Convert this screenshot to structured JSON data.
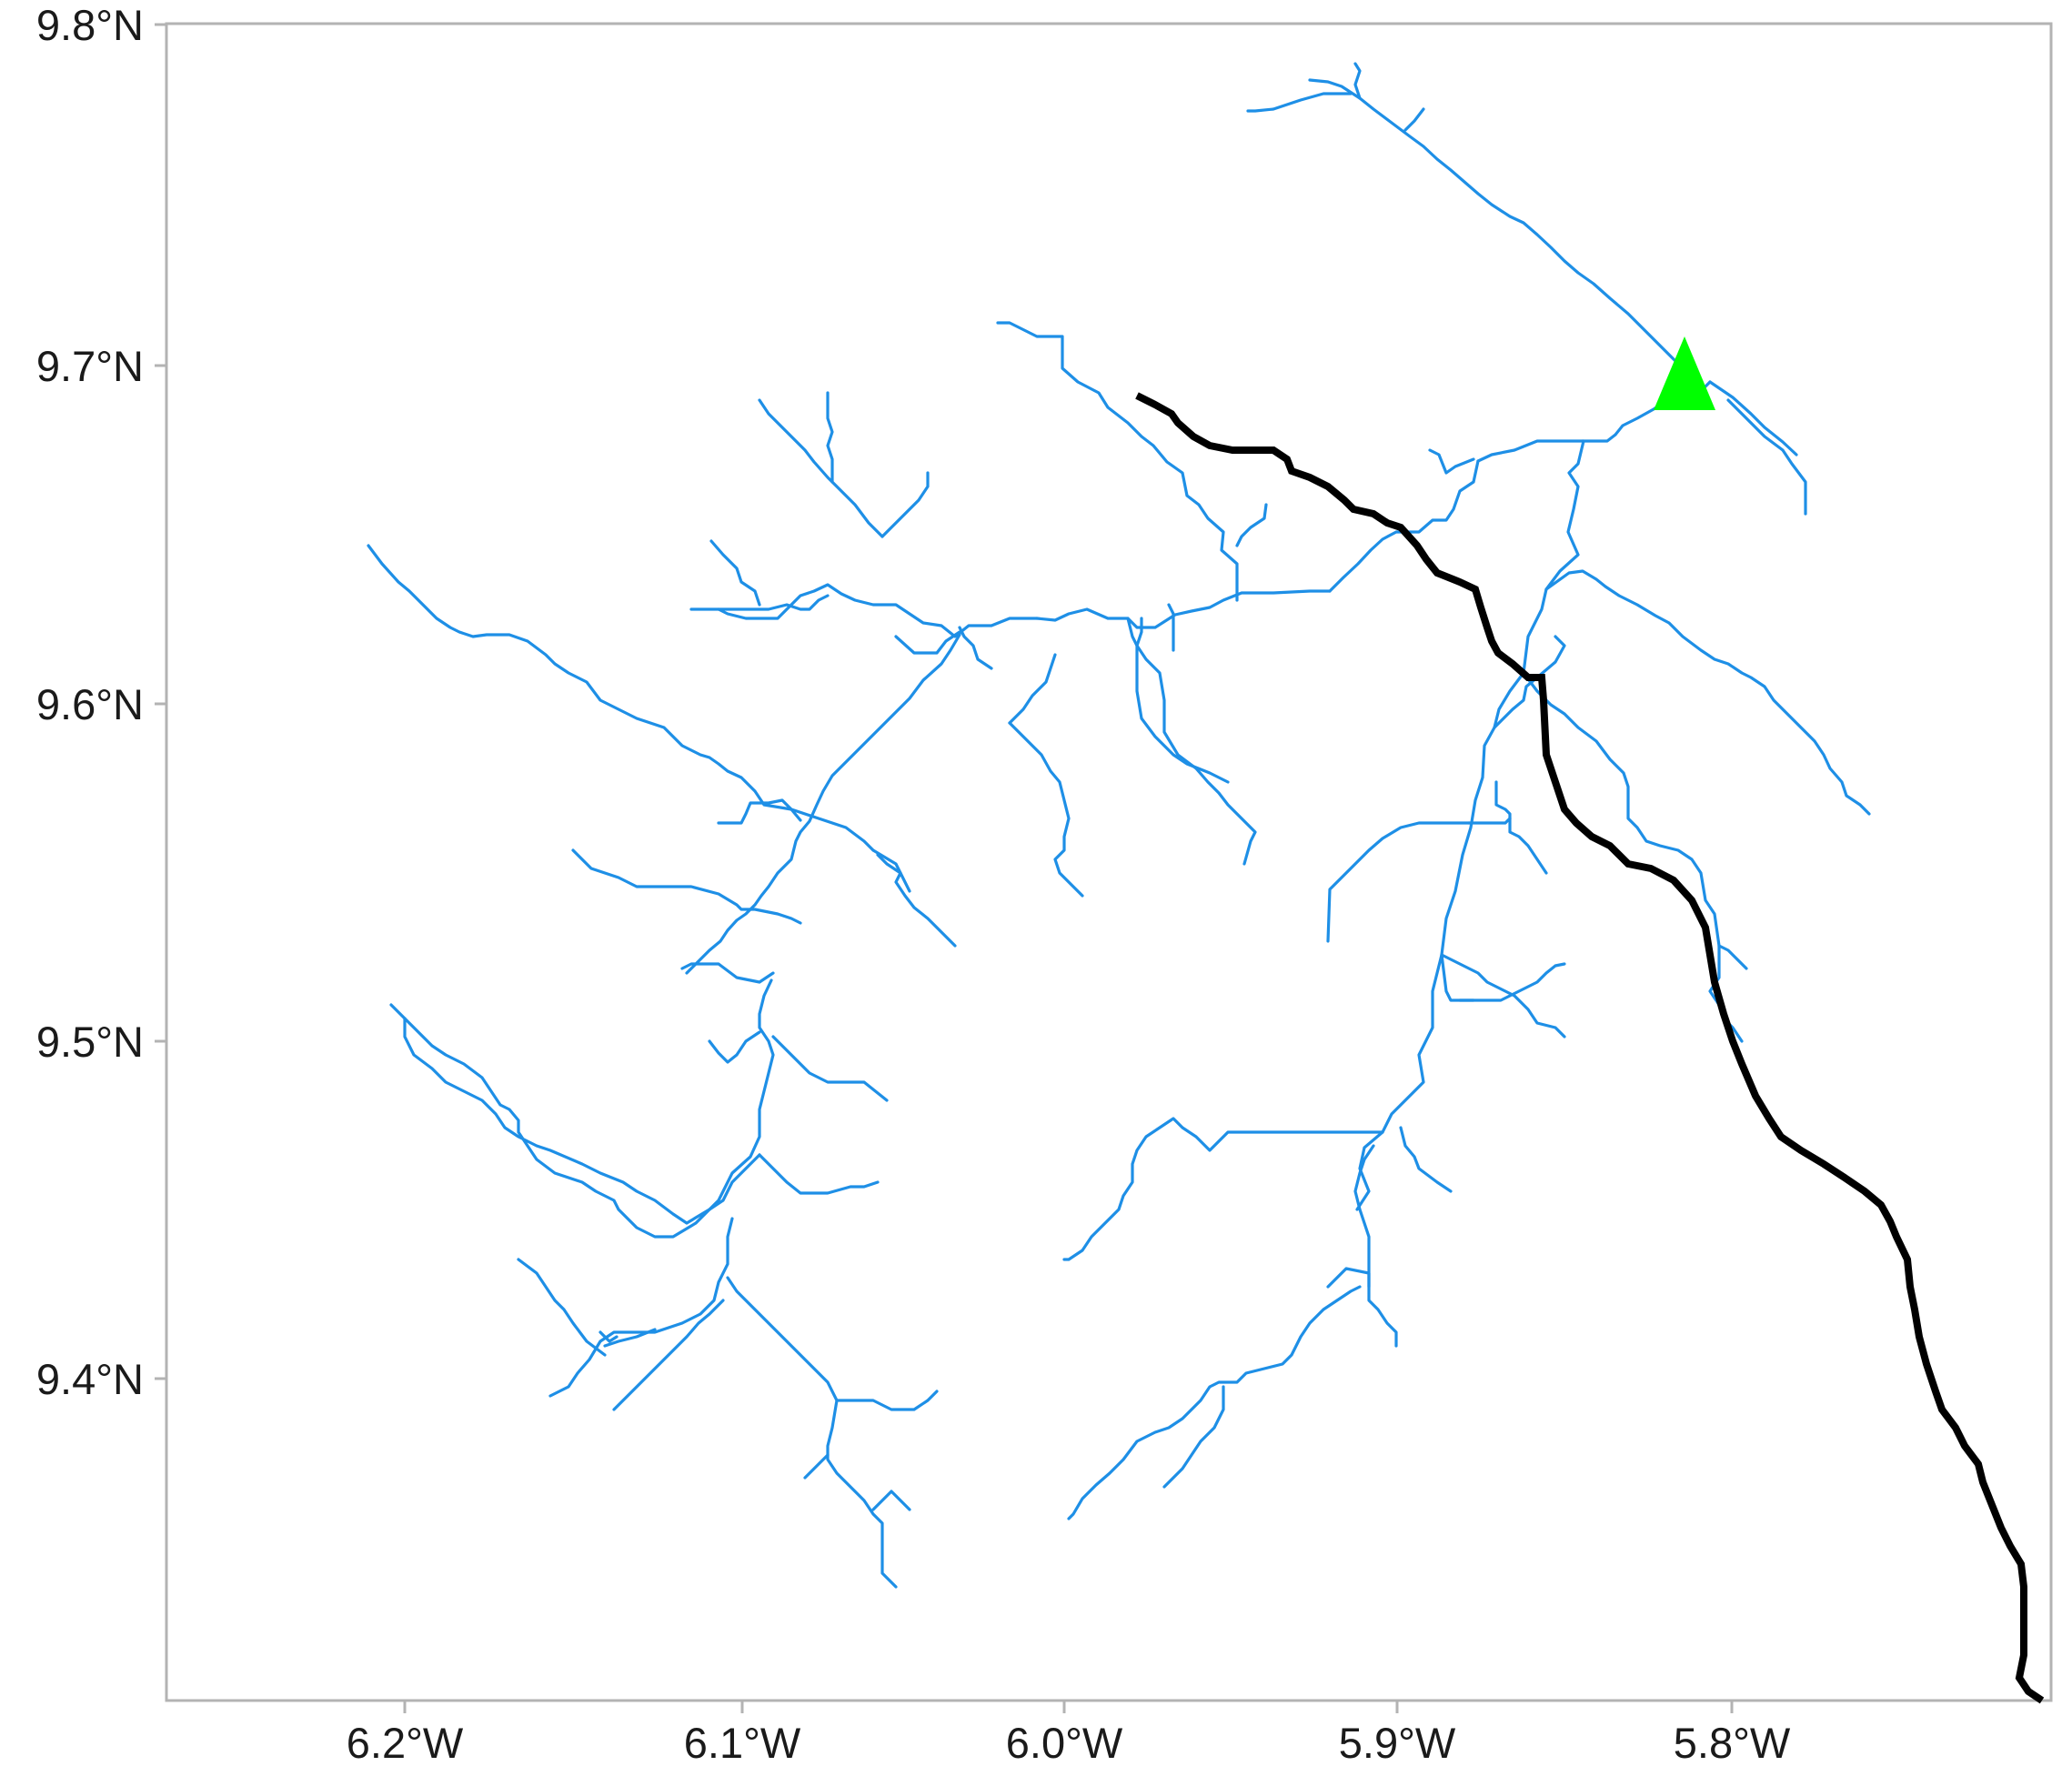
{
  "map": {
    "x_ticks": [
      "6.2°W",
      "6.1°W",
      "6.0°W",
      "5.9°W",
      "5.8°W"
    ],
    "y_ticks": [
      "9.8°N",
      "9.7°N",
      "9.6°N",
      "9.5°N",
      "9.4°N"
    ],
    "xlim": [
      -6.265,
      -5.765
    ],
    "ylim": [
      9.31,
      9.807
    ],
    "colors": {
      "boundary": "#000000",
      "river": "#1e8fe6",
      "outlet_marker": "#00ff00",
      "panel_border": "#b3b3b3"
    },
    "outlet": {
      "icon": "triangle-marker-icon",
      "lon": -5.818,
      "lat": 9.698
    }
  }
}
